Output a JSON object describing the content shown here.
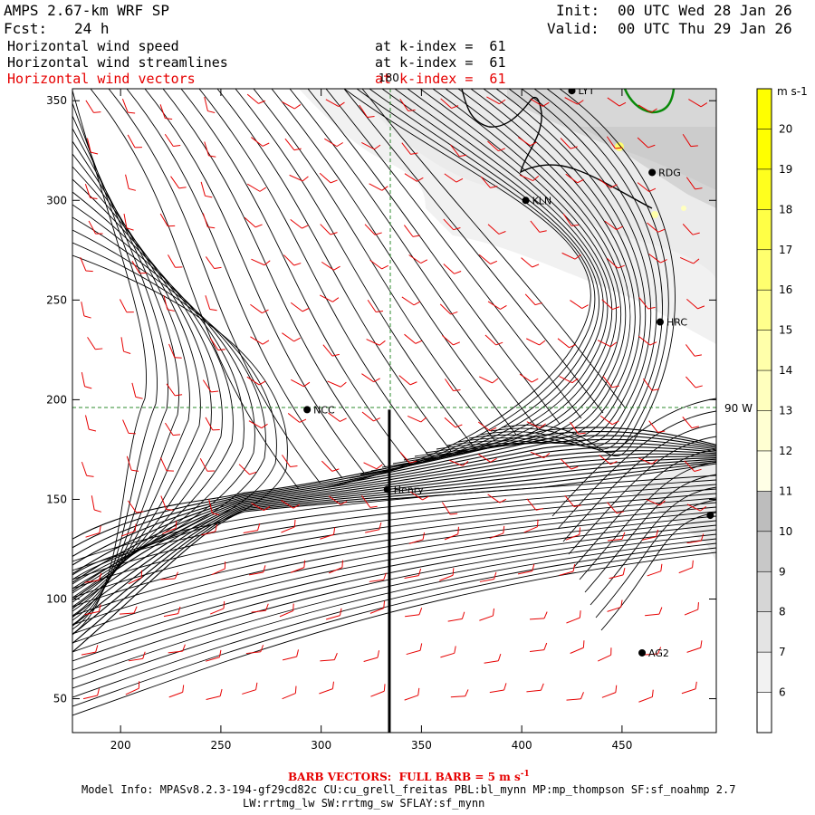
{
  "header": {
    "model": "AMPS 2.67-km WRF SP",
    "fcst_label": "Fcst:",
    "fcst_value": "24 h",
    "init_label": "Init:",
    "init_value": "00 UTC Wed 28 Jan 26",
    "valid_label": "Valid:",
    "valid_value": "00 UTC Thu 29 Jan 26",
    "fields": [
      {
        "name": "Horizontal wind speed",
        "level": "at k-index =  61",
        "color": "#000000"
      },
      {
        "name": "Horizontal wind streamlines",
        "level": "at k-index =  61",
        "color": "#000000"
      },
      {
        "name": "Horizontal wind vectors",
        "level": "at k-index =  61",
        "color": "#e60000"
      }
    ]
  },
  "map": {
    "x_range": [
      176,
      497
    ],
    "y_range": [
      33,
      356
    ],
    "x_ticks": [
      200,
      250,
      300,
      350,
      400,
      450
    ],
    "y_ticks": [
      50,
      100,
      150,
      200,
      250,
      300,
      350
    ],
    "meridian_label": "180",
    "parallel_label": "90 W",
    "cross_section": {
      "x": 334,
      "y_from": 33,
      "y_to": 195
    },
    "stations": [
      {
        "id": "NCC",
        "x": 293,
        "y": 195
      },
      {
        "id": "KLN",
        "x": 402,
        "y": 300
      },
      {
        "id": "RDG",
        "x": 465,
        "y": 314
      },
      {
        "id": "HRC",
        "x": 469,
        "y": 239
      },
      {
        "id": "AG2",
        "x": 460,
        "y": 73
      },
      {
        "id": "LYT",
        "x": 425,
        "y": 355
      },
      {
        "id": "Henry",
        "x": 333,
        "y": 155
      },
      {
        "id": "",
        "x": 494,
        "y": 142
      }
    ]
  },
  "colorbar": {
    "unit": "m s-1",
    "levels": [
      6,
      7,
      8,
      9,
      10,
      11,
      12,
      13,
      14,
      15,
      16,
      17,
      18,
      19,
      20
    ],
    "colors": [
      "#ffffff",
      "#f2f2f2",
      "#e4e4e4",
      "#d6d6d6",
      "#c8c8c8",
      "#bdbdbd",
      "#ffffe6",
      "#ffffd2",
      "#ffffbe",
      "#ffffaa",
      "#ffff8c",
      "#ffff6e",
      "#ffff46",
      "#ffff1e",
      "#ffff00",
      "#ffff00"
    ]
  },
  "footer": {
    "barb_caption": "BARB VECTORS:  FULL BARB = 5 m s",
    "barb_superscript": "-1",
    "model_info": "Model Info: MPASv8.2.3-194-gf29cd82c CU:cu_grell_freitas PBL:bl_mynn MP:mp_thompson SF:sf_noahmp 2.7",
    "model_info_2": "LW:rrtmg_lw SW:rrtmg_sw SFLAY:sf_mynn"
  }
}
